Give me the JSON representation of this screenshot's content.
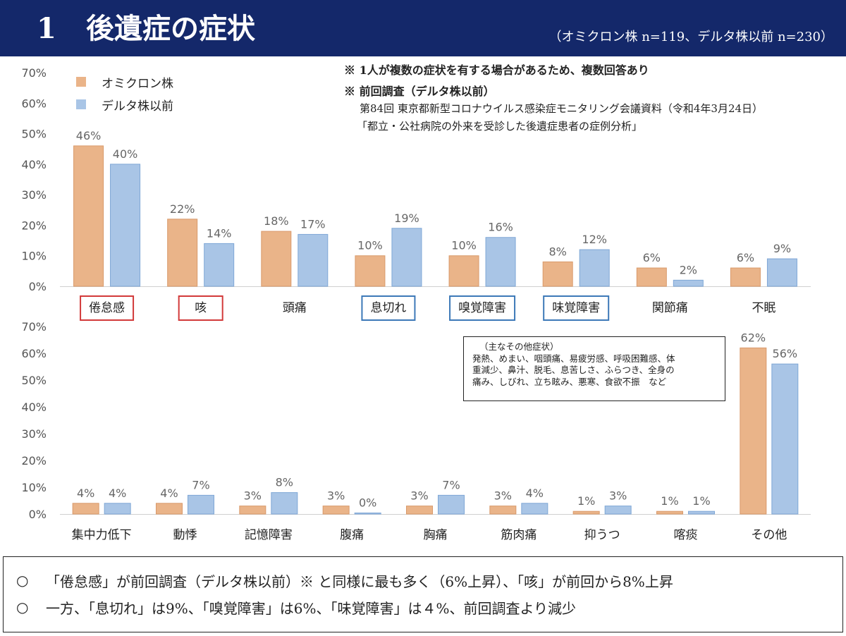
{
  "header": {
    "number": "1",
    "title": "後遺症の症状",
    "sample_note": "（オミクロン株 n=119、デルタ株以前 n=230）"
  },
  "notes": {
    "multiple_answer": "※ 1人が複数の症状を有する場合があるため、複数回答あり",
    "previous_survey": "※ 前回調査（デルタ株以前）",
    "source_line1": "第84回 東京都新型コロナウイルス感染症モニタリング会議資料（令和4年3月24日）",
    "source_line2": "「都立・公社病院の外来を受診した後遺症患者の症例分析」"
  },
  "legend": [
    {
      "label": "オミクロン株",
      "color": "#eab489"
    },
    {
      "label": "デルタ株以前",
      "color": "#a9c5e6"
    }
  ],
  "colors": {
    "omicron": "#eab489",
    "omicron_edge": "#d99a6b",
    "delta": "#a9c5e6",
    "delta_edge": "#7fa7d6",
    "highlight_red": "#d23a3a",
    "highlight_blue": "#3d79b8",
    "header_bg": "#14286a"
  },
  "other_symptoms": {
    "title": "（主なその他症状）",
    "lines": [
      "発熱、めまい、咽頭痛、易疲労感、呼吸困難感、体",
      "重減少、鼻汁、脱毛、息苦しさ、ふらつき、全身の",
      "痛み、しびれ、立ち眩み、悪寒、食欲不振　など"
    ]
  },
  "summary": {
    "bullet": "○",
    "line1": "「倦怠感」が前回調査（デルタ株以前）※ と同様に最も多く（6%上昇）、「咳」が前回から8%上昇",
    "line2": "一方、「息切れ」は9%、「嗅覚障害」は6%、「味覚障害」は４%、前回調査より減少"
  },
  "chart_data": [
    {
      "type": "bar",
      "categories": [
        "倦怠感",
        "咳",
        "頭痛",
        "息切れ",
        "嗅覚障害",
        "味覚障害",
        "関節痛",
        "不眠"
      ],
      "highlight": {
        "倦怠感": "red",
        "咳": "red",
        "息切れ": "blue",
        "嗅覚障害": "blue",
        "味覚障害": "blue"
      },
      "series": [
        {
          "name": "オミクロン株",
          "values": [
            46,
            22,
            18,
            10,
            10,
            8,
            6,
            6
          ]
        },
        {
          "name": "デルタ株以前",
          "values": [
            40,
            14,
            17,
            19,
            16,
            12,
            2,
            9
          ]
        }
      ],
      "ylim": [
        0,
        70
      ],
      "yticks": [
        "0%",
        "10%",
        "20%",
        "30%",
        "40%",
        "50%",
        "60%",
        "70%"
      ],
      "grid": false,
      "legend": "top-left"
    },
    {
      "type": "bar",
      "categories": [
        "集中力低下",
        "動悸",
        "記憶障害",
        "腹痛",
        "胸痛",
        "筋肉痛",
        "抑うつ",
        "喀痰",
        "その他"
      ],
      "series": [
        {
          "name": "オミクロン株",
          "values": [
            4,
            4,
            3,
            3,
            3,
            3,
            1,
            1,
            62
          ]
        },
        {
          "name": "デルタ株以前",
          "values": [
            4,
            7,
            8,
            0,
            7,
            4,
            3,
            1,
            56
          ]
        }
      ],
      "ylim": [
        0,
        70
      ],
      "yticks": [
        "0%",
        "10%",
        "20%",
        "30%",
        "40%",
        "50%",
        "60%",
        "70%"
      ],
      "grid": false
    }
  ]
}
